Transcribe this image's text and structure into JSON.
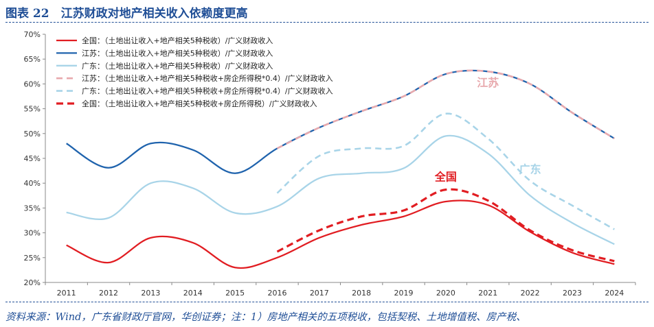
{
  "header": {
    "title": "图表 22　江苏财政对地产相关收入依赖度更高"
  },
  "footer": {
    "source": "资料来源：Wind，广东省财政厅官网，华创证券；注：1）房地产相关的五项税收，包括契税、土地增值税、房产税、"
  },
  "colors": {
    "brand": "#1f4e96",
    "jiangsu": "#1f63ad",
    "guangdong": "#a8d4e8",
    "national": "#e11d22",
    "jiangsu_alt": "#e8a9ad"
  },
  "chart_data": {
    "type": "line",
    "x": [
      "2011",
      "2012",
      "2013",
      "2014",
      "2015",
      "2016",
      "2017",
      "2018",
      "2019",
      "2020",
      "2021",
      "2022",
      "2023",
      "2024"
    ],
    "ylim": [
      0.2,
      0.7
    ],
    "yticks": [
      "20%",
      "25%",
      "30%",
      "35%",
      "40%",
      "45%",
      "50%",
      "55%",
      "60%",
      "65%",
      "70%"
    ],
    "grid": false,
    "legend_position": "top-left",
    "series": [
      {
        "name": "全国：（土地出让收入+地产相关5种税收）/广义财政收入",
        "color": "#e11d22",
        "dash": "solid",
        "values": [
          0.275,
          0.24,
          0.29,
          0.28,
          0.23,
          0.25,
          0.29,
          0.316,
          0.333,
          0.363,
          0.356,
          0.302,
          0.26,
          0.237
        ]
      },
      {
        "name": "江苏：（土地出让收入+地产相关5种税收）/广义财政收入",
        "color": "#1f63ad",
        "dash": "solid",
        "values": [
          0.48,
          0.431,
          0.48,
          0.467,
          0.42,
          0.47,
          0.512,
          0.545,
          0.575,
          0.62,
          0.625,
          0.6,
          0.542,
          0.49
        ]
      },
      {
        "name": "广东：（土地出让收入+地产相关5种税收）/广义财政收入",
        "color": "#a8d4e8",
        "dash": "solid",
        "values": [
          0.341,
          0.33,
          0.4,
          0.39,
          0.34,
          0.353,
          0.41,
          0.42,
          0.43,
          0.495,
          0.46,
          0.375,
          0.32,
          0.277
        ]
      },
      {
        "name": "江苏：（土地出让收入+地产相关5种税收+房企所得税*0.4）/广义财政收入",
        "color": "#e8a9ad",
        "dash": "dashed",
        "values": [
          null,
          null,
          null,
          null,
          null,
          0.47,
          0.512,
          0.545,
          0.575,
          0.62,
          0.625,
          0.6,
          0.542,
          0.49
        ]
      },
      {
        "name": "广东：（土地出让收入+地产相关5种税收+房企所得税*0.4）/广义财政收入",
        "color": "#a8d4e8",
        "dash": "dashed",
        "values": [
          null,
          null,
          null,
          null,
          null,
          0.38,
          0.455,
          0.47,
          0.475,
          0.54,
          0.49,
          0.405,
          0.355,
          0.307
        ]
      },
      {
        "name": "全国：（土地出让收入+地产相关5种税收+房企所得税）/广义财政收入",
        "color": "#e11d22",
        "dash": "dashed",
        "values": [
          null,
          null,
          null,
          null,
          null,
          0.262,
          0.305,
          0.333,
          0.345,
          0.387,
          0.365,
          0.305,
          0.265,
          0.243
        ]
      }
    ],
    "annotations": [
      {
        "text": "江苏",
        "x": "2021",
        "y": 0.595,
        "color": "#e8a9ad"
      },
      {
        "text": "广东",
        "x": "2022",
        "y": 0.42,
        "color": "#a8d4e8"
      },
      {
        "text": "全国",
        "x": "2020",
        "y": 0.405,
        "color": "#e11d22"
      }
    ]
  }
}
